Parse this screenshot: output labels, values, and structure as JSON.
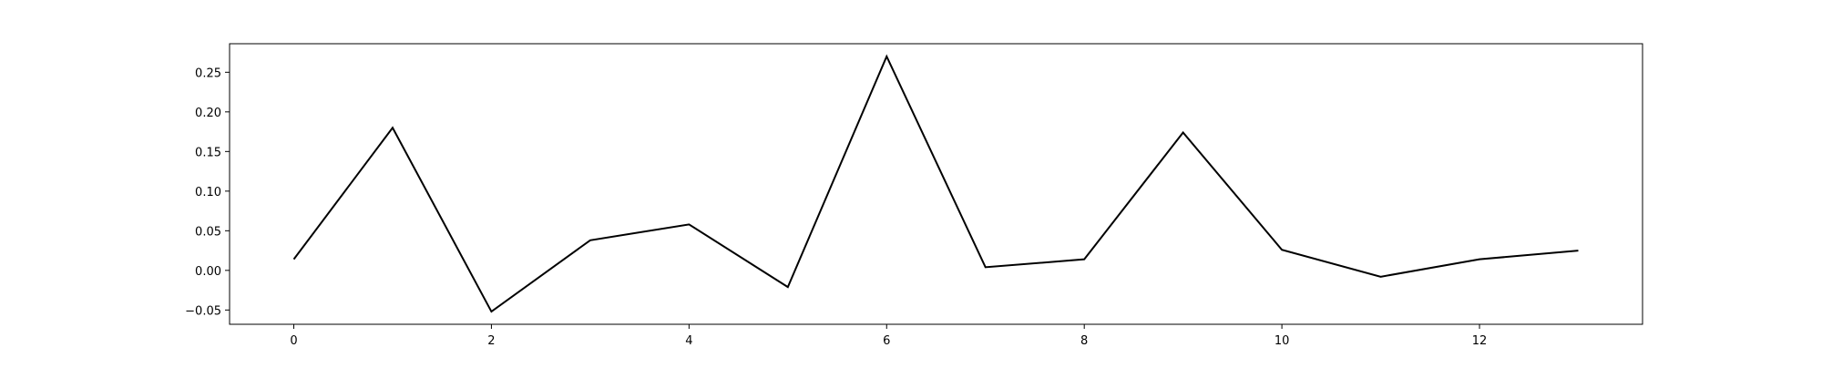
{
  "chart_data": {
    "type": "line",
    "title": "",
    "xlabel": "",
    "ylabel": "",
    "grid": false,
    "xlim": [
      -0.65,
      13.65
    ],
    "ylim": [
      -0.068,
      0.286
    ],
    "x_ticks": [
      0,
      2,
      4,
      6,
      8,
      10,
      12
    ],
    "x_tick_labels": [
      "0",
      "2",
      "4",
      "6",
      "8",
      "10",
      "12"
    ],
    "y_ticks": [
      -0.05,
      0.0,
      0.05,
      0.1,
      0.15,
      0.2,
      0.25
    ],
    "y_tick_labels": [
      "−0.05",
      "0.00",
      "0.05",
      "0.10",
      "0.15",
      "0.20",
      "0.25"
    ],
    "series": [
      {
        "color": "#000000",
        "x": [
          0,
          1,
          2,
          3,
          4,
          5,
          6,
          7,
          8,
          9,
          10,
          11,
          12,
          13
        ],
        "y": [
          0.014,
          0.18,
          -0.052,
          0.038,
          0.058,
          -0.021,
          0.27,
          0.004,
          0.014,
          0.174,
          0.026,
          -0.008,
          0.014,
          0.025
        ]
      }
    ]
  }
}
